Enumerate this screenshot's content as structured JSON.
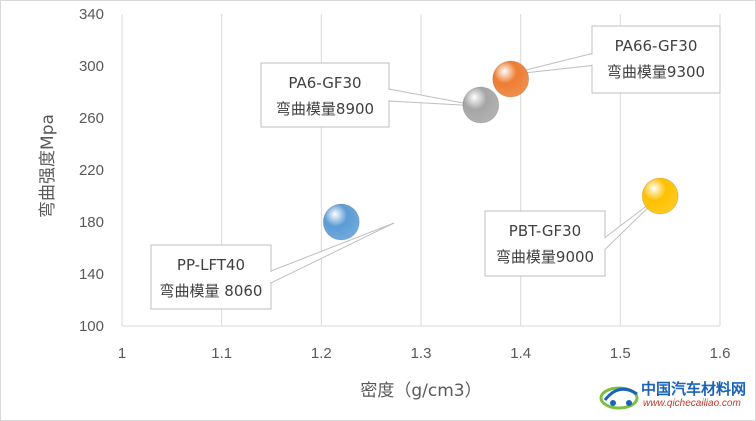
{
  "chart_data": {
    "type": "scatter",
    "title": "",
    "xlabel": "密度（g/cm3）",
    "ylabel": "弯曲强度Mpa",
    "xlim": [
      1,
      1.6
    ],
    "ylim": [
      100,
      340
    ],
    "x_ticks": [
      "1",
      "1.1",
      "1.2",
      "1.3",
      "1.4",
      "1.5",
      "1.6"
    ],
    "y_ticks": [
      "100",
      "140",
      "180",
      "220",
      "260",
      "300",
      "340"
    ],
    "grid": "vertical",
    "points": [
      {
        "x": 1.22,
        "y": 180,
        "color": "#5b9bd5",
        "label_line1": "PP-LFT40",
        "label_line2": "弯曲模量 8060"
      },
      {
        "x": 1.36,
        "y": 270,
        "color": "#a5a5a5",
        "label_line1": "PA6-GF30",
        "label_line2": "弯曲模量8900"
      },
      {
        "x": 1.39,
        "y": 290,
        "color": "#ed7d31",
        "label_line1": "PA66-GF30",
        "label_line2": "弯曲模量9300"
      },
      {
        "x": 1.54,
        "y": 200,
        "color": "#ffc000",
        "label_line1": "PBT-GF30",
        "label_line2": "弯曲模量9000"
      }
    ]
  },
  "watermark": {
    "name": "中国汽车材料网",
    "url": "www.qichecailiao.com"
  }
}
